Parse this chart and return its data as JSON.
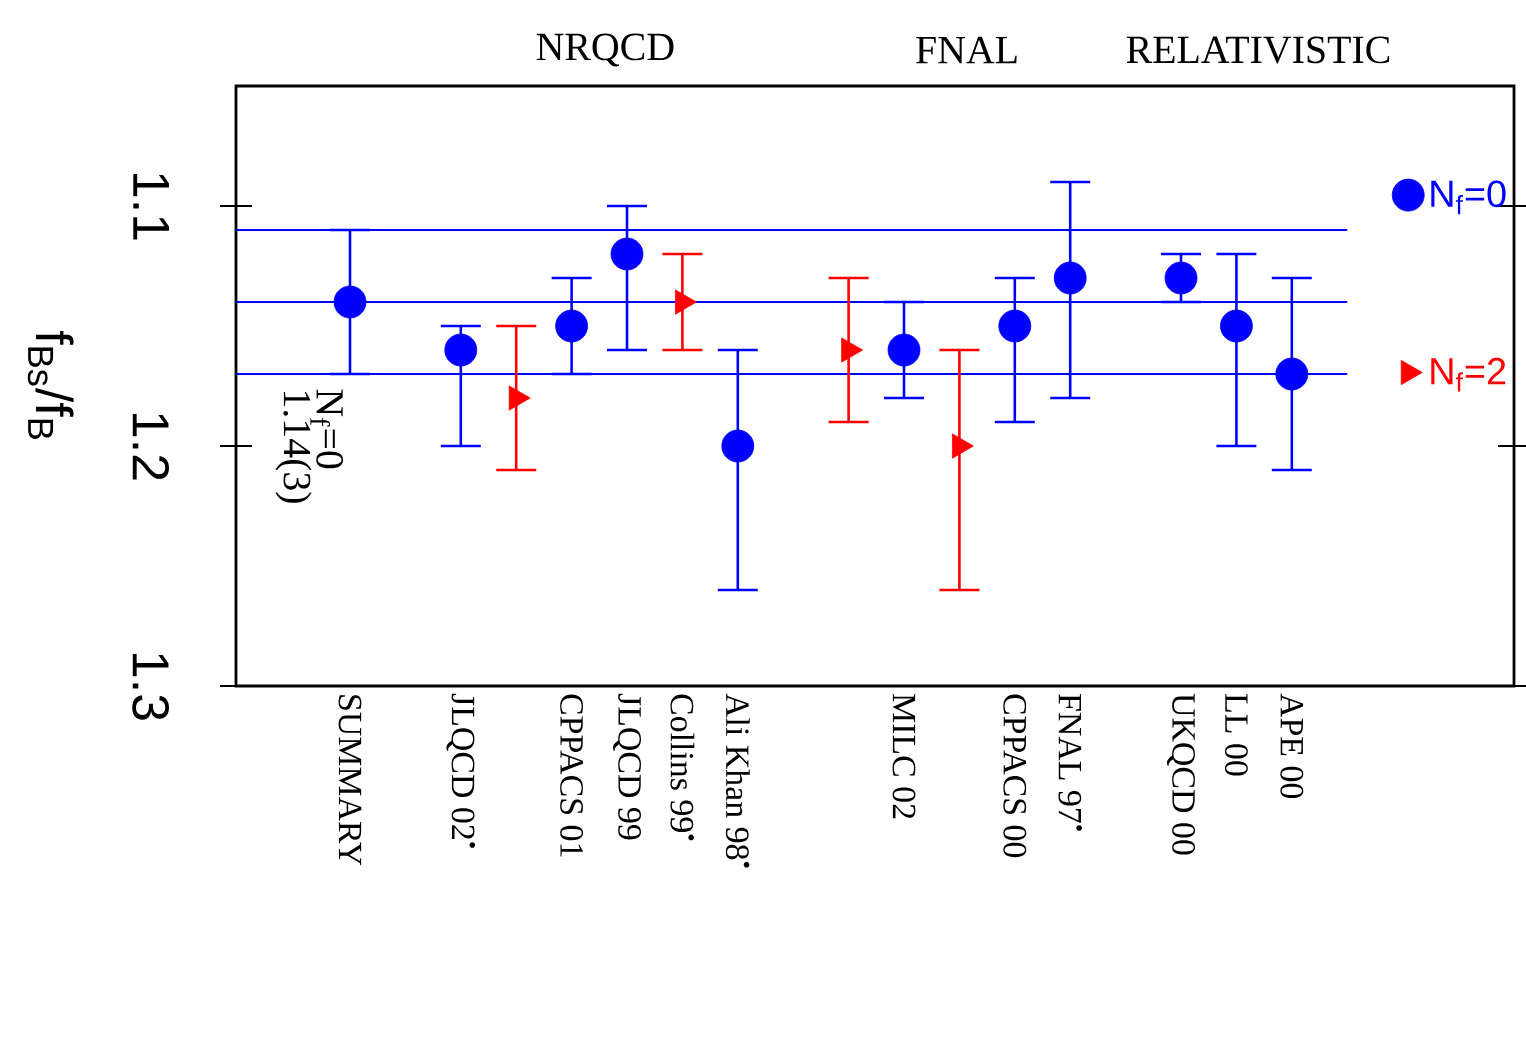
{
  "chart_data": {
    "type": "scatter",
    "ylabel": "f$_{Bs}$/f$_{B}$",
    "categories": [
      "SUMMARY",
      null,
      "JLQCD 02$^{•}$",
      null,
      "CPPACS 01",
      "JLQCD 99",
      "Collins 99$^{•}$",
      "Ali Khan 98$^{•}$",
      null,
      null,
      "MILC 02",
      null,
      "CPPACS 00",
      "FNAL 97$^{•}$",
      null,
      "UKQCD 00",
      "LL 00",
      "APE 00"
    ],
    "series": [
      {
        "name": "N$_{f}$=0",
        "color": "#0000ff",
        "marker": "circle",
        "values": [
          1.14,
          null,
          1.16,
          null,
          1.15,
          1.12,
          null,
          1.2,
          null,
          null,
          1.16,
          null,
          1.15,
          1.13,
          null,
          1.13,
          1.15,
          1.17
        ],
        "errors": [
          [
            1.11,
            1.17
          ],
          null,
          [
            1.15,
            1.2
          ],
          null,
          [
            1.13,
            1.17
          ],
          [
            1.1,
            1.16
          ],
          null,
          [
            1.16,
            1.26
          ],
          null,
          null,
          [
            1.14,
            1.18
          ],
          null,
          [
            1.13,
            1.19
          ],
          [
            1.09,
            1.18
          ],
          null,
          [
            1.12,
            1.14
          ],
          [
            1.12,
            1.2
          ],
          [
            1.13,
            1.21
          ]
        ]
      },
      {
        "name": "N$_{f}$=2",
        "color": "#ff0000",
        "marker": "triangle",
        "values": [
          null,
          null,
          null,
          1.18,
          null,
          null,
          1.14,
          null,
          null,
          1.16,
          null,
          1.2,
          null,
          null,
          null,
          null,
          null,
          null
        ],
        "errors": [
          null,
          null,
          null,
          [
            1.15,
            1.21
          ],
          null,
          null,
          [
            1.12,
            1.16
          ],
          null,
          null,
          [
            1.13,
            1.19
          ],
          null,
          [
            1.16,
            1.26
          ],
          null,
          null,
          null,
          null,
          null,
          null
        ]
      }
    ],
    "ylim": [
      1.3,
      1.05
    ],
    "yticks": [
      1.1,
      1.2,
      1.3
    ],
    "ref_lines": [
      {
        "axis": "y",
        "value": 1.11,
        "color": "#0000ff"
      },
      {
        "axis": "y",
        "value": 1.14,
        "color": "#0000ff"
      },
      {
        "axis": "y",
        "value": 1.17,
        "color": "#0000ff"
      }
    ],
    "annotations": [
      "NRQCD",
      "FNAL",
      "RELATIVISTIC",
      "N$_{f}$=0",
      "1.14(3)"
    ],
    "legend": "right"
  }
}
